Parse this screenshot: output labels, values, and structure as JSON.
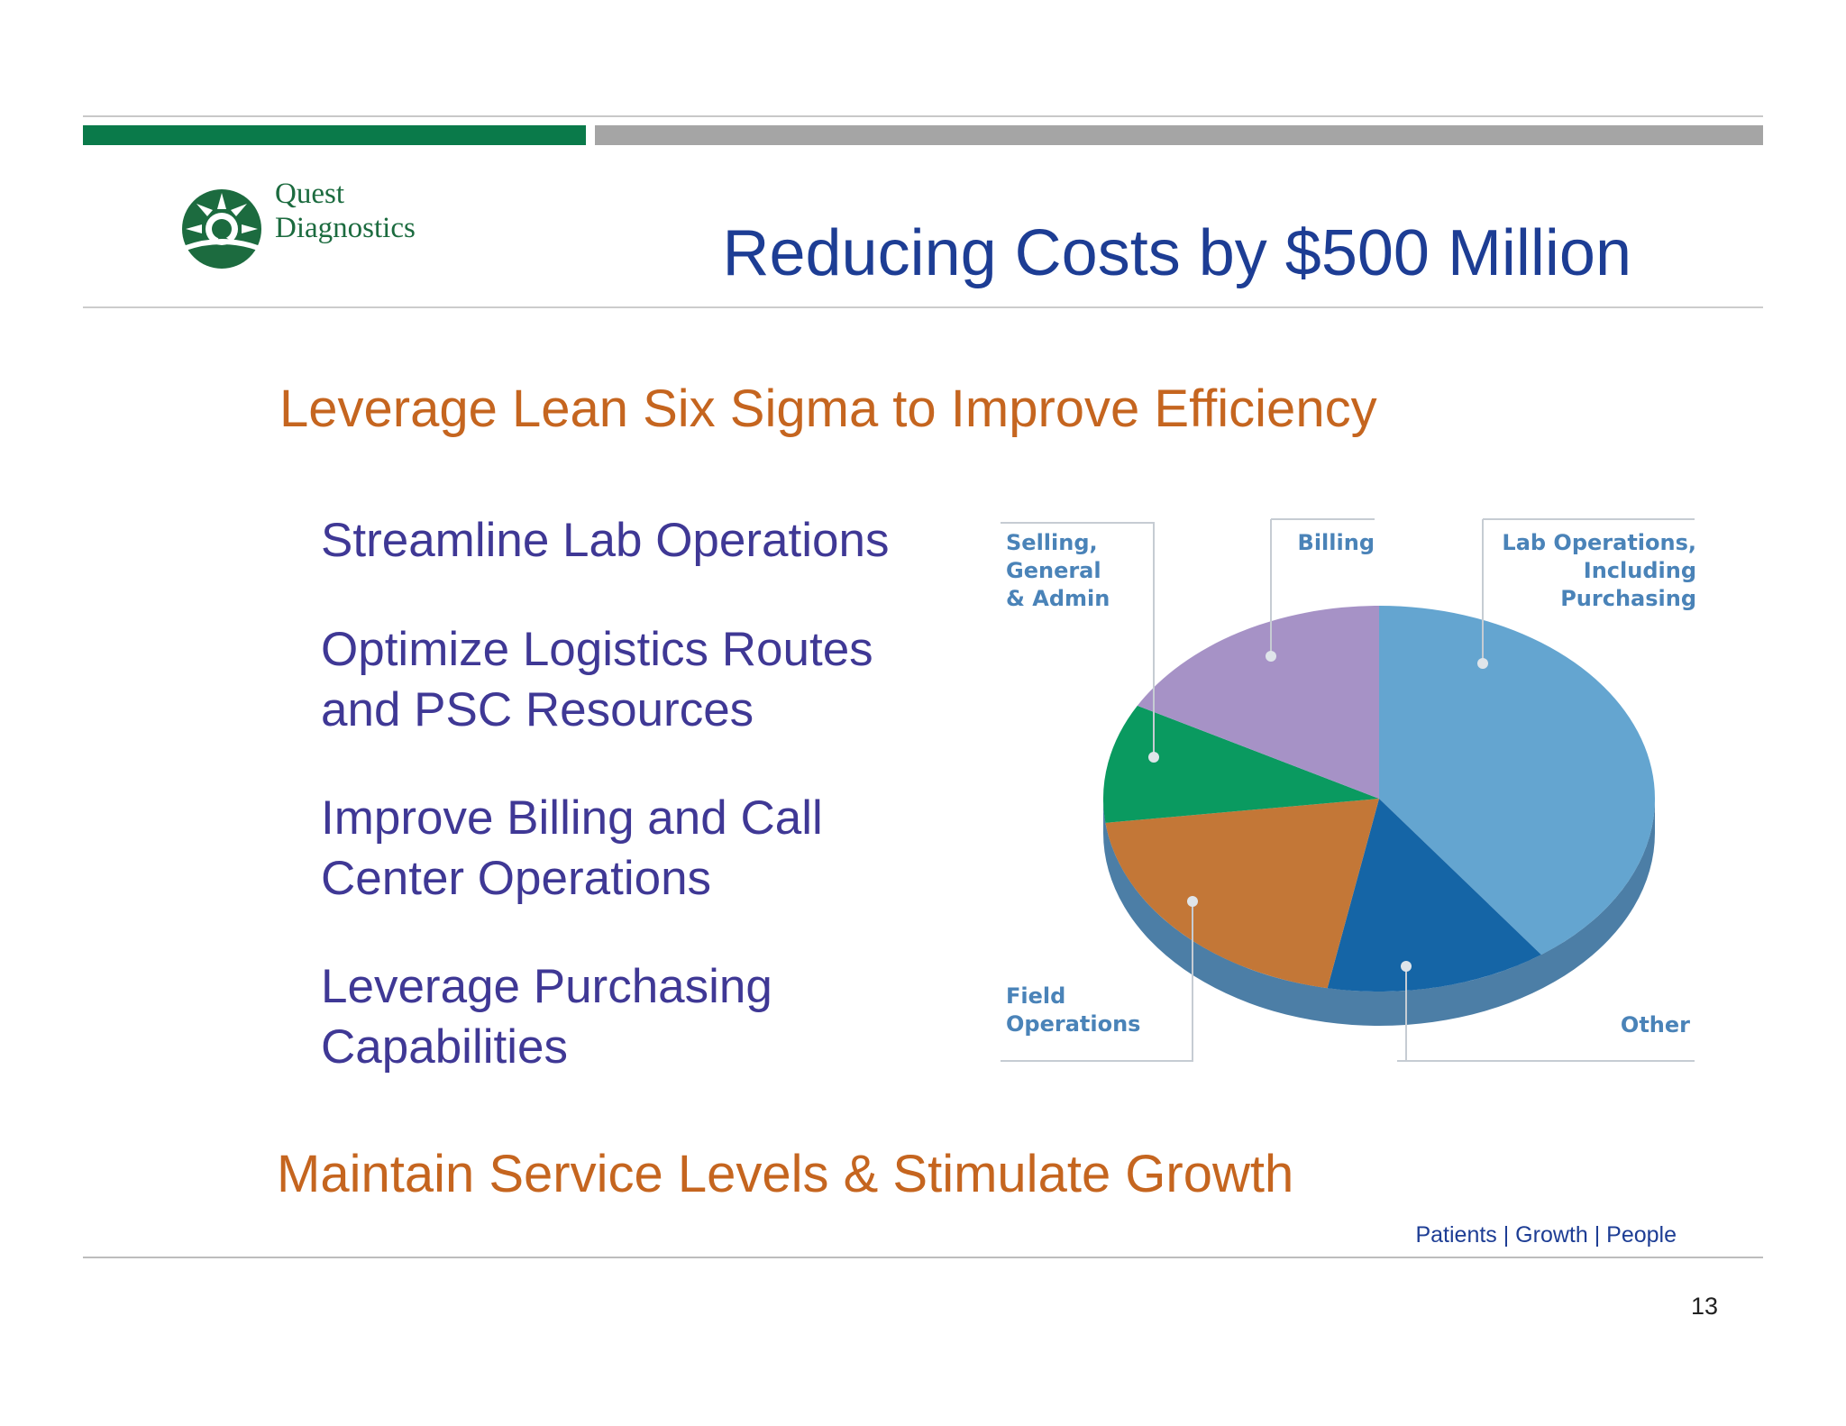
{
  "brand": {
    "logo_text": "Quest\nDiagnostics",
    "green": "#0a7a4a",
    "gray": "#a5a5a5"
  },
  "slide": {
    "title": "Reducing Costs by $500 Million",
    "heading1": "Leverage Lean Six Sigma to Improve Efficiency",
    "bullets": [
      "Streamline Lab Operations",
      "Optimize Logistics Routes\nand PSC Resources",
      "Improve Billing and Call\nCenter Operations",
      "Leverage Purchasing\nCapabilities"
    ],
    "heading2": "Maintain Service Levels & Stimulate Growth",
    "footer_tagline": "Patients | Growth | People",
    "page_number": "13"
  },
  "chart_data": {
    "type": "pie",
    "style": "3d",
    "labels": [
      "Selling,\nGeneral\n& Admin",
      "Billing",
      "Lab Operations,\nIncluding\nPurchasing",
      "Field\nOperations",
      "Other"
    ],
    "slices": [
      {
        "label": "Lab Operations, Including Purchasing",
        "share": 0.4,
        "color": "#64a5d0"
      },
      {
        "label": "Other",
        "share": 0.13,
        "color": "#1565a6"
      },
      {
        "label": "Field Operations",
        "share": 0.2,
        "color": "#c37737"
      },
      {
        "label": "Selling, General & Admin",
        "share": 0.1,
        "color": "#0a9a60"
      },
      {
        "label": "Billing",
        "share": 0.17,
        "color": "#a692c6"
      }
    ]
  }
}
